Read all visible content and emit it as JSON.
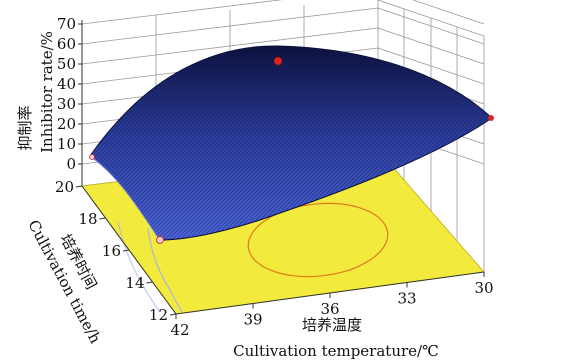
{
  "chart_data": {
    "type": "surface3d",
    "title": "",
    "z_axis": {
      "label_zh": "抑制率",
      "label_en": "Inhibitor rate/%",
      "ticks": [
        0,
        10,
        20,
        30,
        40,
        50,
        60,
        70
      ],
      "range": [
        0,
        70
      ]
    },
    "y_axis": {
      "label_zh": "培养时间",
      "label_en": "Cultivation time/h",
      "ticks": [
        12,
        14,
        16,
        18,
        20
      ],
      "range": [
        12,
        20
      ]
    },
    "x_axis": {
      "label_zh": "培养温度",
      "label_en": "Cultivation temperature/℃",
      "ticks": [
        42,
        39,
        36,
        33,
        30
      ],
      "range": [
        30,
        42
      ]
    },
    "surface_color": "#2b3fa6",
    "floor_color": "#f2ea3c",
    "contour_color": "#e07a1f",
    "design_points": [
      {
        "temperature": 36,
        "time": 16,
        "rate": 62
      },
      {
        "temperature": 42,
        "time": 20,
        "rate": 12
      },
      {
        "temperature": 30,
        "time": 12,
        "rate": 22
      },
      {
        "temperature": 42,
        "time": 12,
        "rate": 5
      }
    ]
  }
}
